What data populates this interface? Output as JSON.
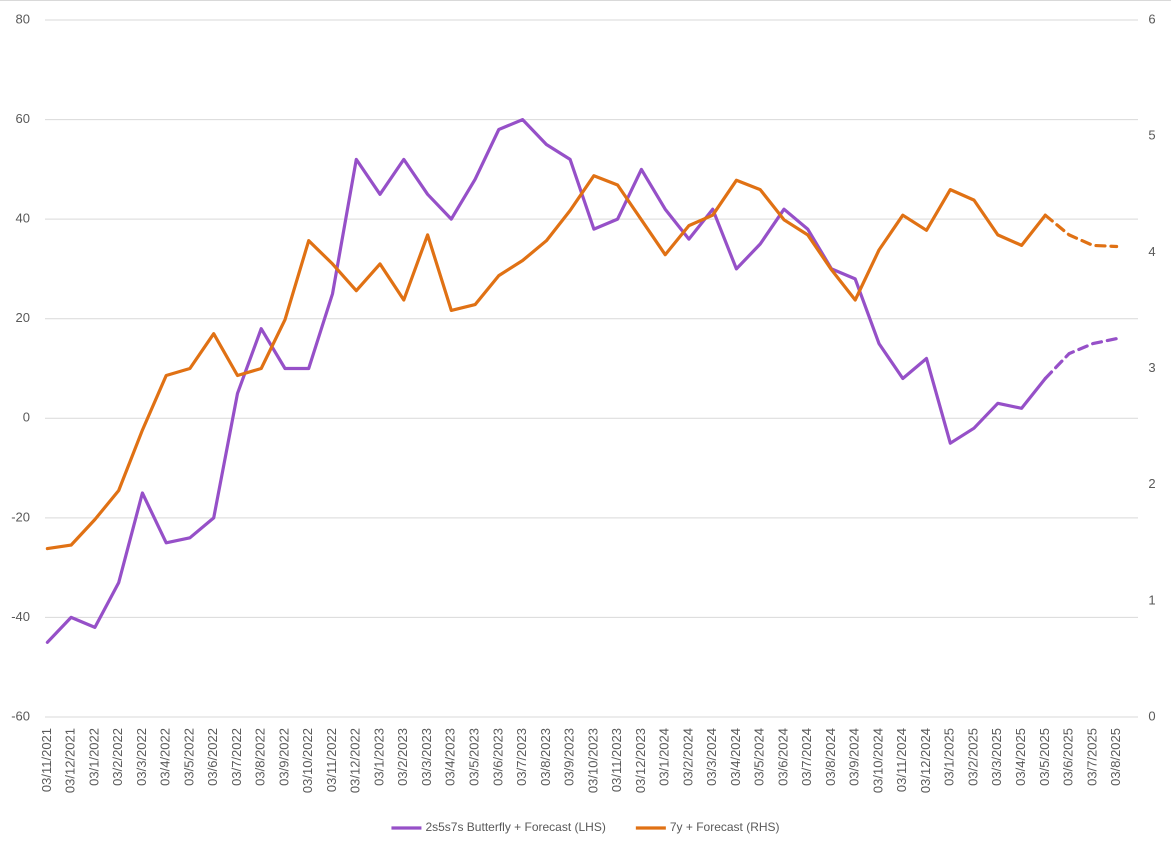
{
  "chart_data": {
    "type": "line",
    "categories": [
      "03/11/2021",
      "03/12/2021",
      "03/1/2022",
      "03/2/2022",
      "03/3/2022",
      "03/4/2022",
      "03/5/2022",
      "03/6/2022",
      "03/7/2022",
      "03/8/2022",
      "03/9/2022",
      "03/10/2022",
      "03/11/2022",
      "03/12/2022",
      "03/1/2023",
      "03/2/2023",
      "03/3/2023",
      "03/4/2023",
      "03/5/2023",
      "03/6/2023",
      "03/7/2023",
      "03/8/2023",
      "03/9/2023",
      "03/10/2023",
      "03/11/2023",
      "03/12/2023",
      "03/1/2024",
      "03/2/2024",
      "03/3/2024",
      "03/4/2024",
      "03/5/2024",
      "03/6/2024",
      "03/7/2024",
      "03/8/2024",
      "03/9/2024",
      "03/10/2024",
      "03/11/2024",
      "03/12/2024",
      "03/1/2025",
      "03/2/2025",
      "03/3/2025",
      "03/4/2025",
      "03/5/2025",
      "03/6/2025",
      "03/7/2025",
      "03/8/2025"
    ],
    "series": [
      {
        "name": "2s5s7s Butterfly + Forecast (LHS)",
        "color": "#9650c8",
        "axis": "y",
        "values": [
          -45,
          -40,
          -42,
          -33,
          -15,
          -25,
          -24,
          -20,
          5,
          18,
          10,
          10,
          25,
          52,
          45,
          52,
          45,
          40,
          48,
          58,
          60,
          55,
          52,
          38,
          40,
          50,
          42,
          36,
          42,
          30,
          35,
          42,
          38,
          30,
          28,
          15,
          8,
          12,
          -5,
          -2,
          3,
          2,
          8,
          null,
          null,
          null
        ],
        "forecast": [
          null,
          null,
          null,
          null,
          null,
          null,
          null,
          null,
          null,
          null,
          null,
          null,
          null,
          null,
          null,
          null,
          null,
          null,
          null,
          null,
          null,
          null,
          null,
          null,
          null,
          null,
          null,
          null,
          null,
          null,
          null,
          null,
          null,
          null,
          null,
          null,
          null,
          null,
          null,
          null,
          null,
          null,
          8,
          13,
          15,
          16
        ]
      },
      {
        "name": "7y + Forecast (RHS)",
        "color": "#e07114",
        "axis": "y2",
        "values": [
          1.45,
          1.48,
          1.7,
          1.95,
          2.47,
          2.94,
          3.0,
          3.3,
          2.94,
          3.0,
          3.42,
          4.1,
          3.9,
          3.67,
          3.9,
          3.59,
          4.15,
          3.5,
          3.55,
          3.8,
          3.93,
          4.1,
          4.36,
          4.66,
          4.58,
          4.28,
          3.98,
          4.23,
          4.32,
          4.62,
          4.54,
          4.28,
          4.15,
          3.85,
          3.59,
          4.02,
          4.32,
          4.19,
          4.54,
          4.45,
          4.15,
          4.06,
          4.32,
          null,
          null,
          null
        ],
        "forecast": [
          null,
          null,
          null,
          null,
          null,
          null,
          null,
          null,
          null,
          null,
          null,
          null,
          null,
          null,
          null,
          null,
          null,
          null,
          null,
          null,
          null,
          null,
          null,
          null,
          null,
          null,
          null,
          null,
          null,
          null,
          null,
          null,
          null,
          null,
          null,
          null,
          null,
          null,
          null,
          null,
          null,
          null,
          4.32,
          4.15,
          4.06,
          4.05
        ]
      }
    ],
    "ylim": [
      -60,
      80
    ],
    "yticks": [
      -60,
      -40,
      -20,
      0,
      20,
      40,
      60,
      80
    ],
    "y2lim": [
      0,
      6
    ],
    "y2ticks": [
      0,
      1,
      2,
      3,
      4,
      5,
      6
    ],
    "grid": true,
    "legend": "bottom"
  }
}
